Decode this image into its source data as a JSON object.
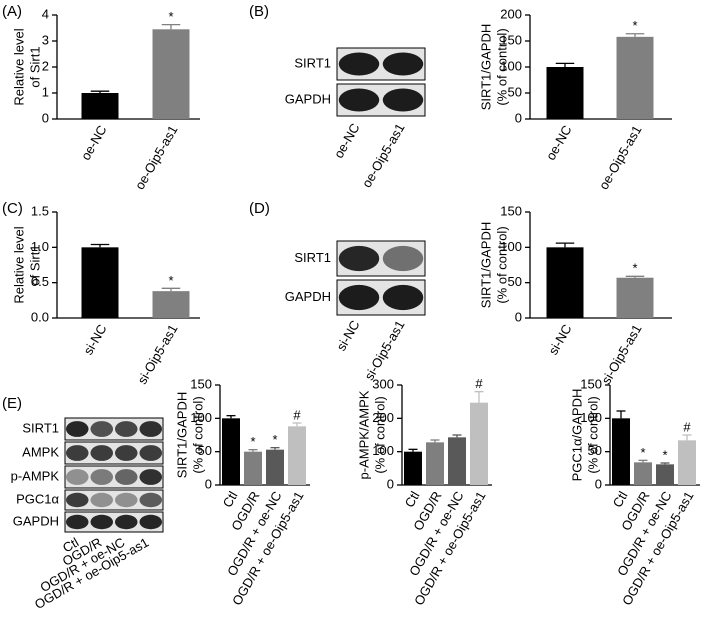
{
  "chart_data": [
    {
      "type": "bar",
      "panel": "(A)",
      "ylabel": [
        "Relative level",
        "of Sirt1"
      ],
      "categories": [
        "oe-NC",
        "oe-Oip5-as1"
      ],
      "values": [
        1.0,
        3.45
      ],
      "errors": [
        0.07,
        0.18
      ],
      "colors": [
        "#000000",
        "#808080"
      ],
      "annotations": [
        null,
        "*"
      ],
      "ylim": [
        0,
        4
      ],
      "yticks": [
        0,
        1,
        2,
        3,
        4
      ]
    },
    {
      "type": "bar",
      "panel": "(B)",
      "ylabel": [
        "SIRT1/GAPDH",
        "(% of control)"
      ],
      "categories": [
        "oe-NC",
        "oe-Oip5-as1"
      ],
      "values": [
        100,
        158
      ],
      "errors": [
        7,
        6
      ],
      "colors": [
        "#000000",
        "#808080"
      ],
      "annotations": [
        null,
        "*"
      ],
      "ylim": [
        0,
        200
      ],
      "yticks": [
        0,
        50,
        100,
        150,
        200
      ]
    },
    {
      "type": "bar",
      "panel": "(C)",
      "ylabel": [
        "Relative level",
        "of Sirt1"
      ],
      "categories": [
        "si-NC",
        "si-Oip5-as1"
      ],
      "values": [
        1.0,
        0.38
      ],
      "errors": [
        0.04,
        0.04
      ],
      "colors": [
        "#000000",
        "#808080"
      ],
      "annotations": [
        null,
        "*"
      ],
      "ylim": [
        0,
        1.5
      ],
      "yticks": [
        {
          "value": 0,
          "label": "0.0"
        },
        {
          "value": 0.5,
          "label": "0.5"
        },
        {
          "value": 1,
          "label": "1.0"
        },
        {
          "value": 1.5,
          "label": "1.5"
        }
      ]
    },
    {
      "type": "bar",
      "panel": "(D)",
      "ylabel": [
        "SIRT1/GAPDH",
        "(% of control)"
      ],
      "categories": [
        "si-NC",
        "si-Oip5-as1"
      ],
      "values": [
        100,
        57
      ],
      "errors": [
        6,
        2
      ],
      "colors": [
        "#000000",
        "#808080"
      ],
      "annotations": [
        null,
        "*"
      ],
      "ylim": [
        0,
        150
      ],
      "yticks": [
        0,
        50,
        100,
        150
      ]
    },
    {
      "type": "bar",
      "panel": "(E)",
      "ylabel": [
        "SIRT1/GAPDH",
        "(% of control)"
      ],
      "categories": [
        "Ctl",
        "OGD/R",
        "OGD/R + oe-NC",
        "OGD/R + oe-Oip5-as1"
      ],
      "values": [
        100,
        50,
        53,
        88
      ],
      "errors": [
        4,
        3,
        3,
        5
      ],
      "colors": [
        "#000000",
        "#7f7f7f",
        "#595959",
        "#bfbfbf"
      ],
      "annotations": [
        null,
        "*",
        "*",
        "#"
      ],
      "ylim": [
        0,
        150
      ],
      "yticks": [
        0,
        50,
        100,
        150
      ]
    },
    {
      "type": "bar",
      "ylabel": [
        "p-AMPK/AMPK",
        "(% of control)"
      ],
      "categories": [
        "Ctl",
        "OGD/R",
        "OGD/R + oe-NC",
        "OGD/R + oe-Oip5-as1"
      ],
      "values": [
        100,
        128,
        143,
        247
      ],
      "errors": [
        7,
        7,
        7,
        33
      ],
      "colors": [
        "#000000",
        "#7f7f7f",
        "#595959",
        "#bfbfbf"
      ],
      "annotations": [
        null,
        null,
        null,
        "#"
      ],
      "ylim": [
        0,
        300
      ],
      "yticks": [
        0,
        100,
        200,
        300
      ]
    },
    {
      "type": "bar",
      "ylabel": [
        "PGC1α/GAPDH",
        "(% of control)"
      ],
      "categories": [
        "Ctl",
        "OGD/R",
        "OGD/R + oe-NC",
        "OGD/R + oe-Oip5-as1"
      ],
      "values": [
        100,
        34,
        31,
        67
      ],
      "errors": [
        11,
        3,
        2,
        8
      ],
      "colors": [
        "#000000",
        "#7f7f7f",
        "#595959",
        "#bfbfbf"
      ],
      "annotations": [
        null,
        "*",
        "*",
        "#"
      ],
      "ylim": [
        0,
        150
      ],
      "yticks": [
        0,
        50,
        100,
        150
      ]
    }
  ],
  "blots": [
    {
      "rows": [
        "SIRT1",
        "GAPDH"
      ],
      "lanes": [
        "oe-NC",
        "oe-Oip5-as1"
      ]
    },
    {
      "rows": [
        "SIRT1",
        "GAPDH"
      ],
      "lanes": [
        "si-NC",
        "si-Oip5-as1"
      ]
    },
    {
      "rows": [
        "SIRT1",
        "AMPK",
        "p-AMPK",
        "PGC1α",
        "GAPDH"
      ],
      "lanes": [
        "Ctl",
        "OGD/R",
        "OGD/R + oe-NC",
        "OGD/R + oe-Oip5-as1"
      ]
    }
  ]
}
